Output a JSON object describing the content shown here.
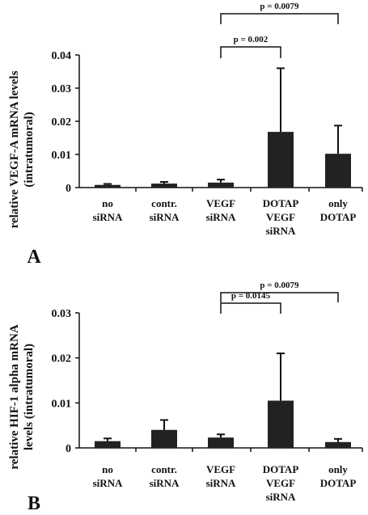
{
  "chart_data": [
    {
      "type": "bar",
      "panel_label": "A",
      "ylabel_lines": [
        "relative VEGF-A mRNA levels",
        "(intratumoral)"
      ],
      "categories": [
        [
          "no",
          "siRNA"
        ],
        [
          "contr.",
          "siRNA"
        ],
        [
          "VEGF",
          "siRNA"
        ],
        [
          "DOTAP",
          "VEGF",
          "siRNA"
        ],
        [
          "only",
          "DOTAP"
        ]
      ],
      "values": [
        0.0008,
        0.0012,
        0.0015,
        0.0168,
        0.0102
      ],
      "errors": [
        0.0003,
        0.0005,
        0.0009,
        0.0192,
        0.0085
      ],
      "ylim": [
        0,
        0.04
      ],
      "yticks": [
        "0",
        "0.01",
        "0.02",
        "0.03",
        "0.04"
      ],
      "bar_color": "#222222",
      "significance": [
        {
          "from": 2,
          "to": 3,
          "label": "p = 0.002"
        },
        {
          "from": 2,
          "to": 4,
          "label": "p = 0.0079"
        }
      ]
    },
    {
      "type": "bar",
      "panel_label": "B",
      "ylabel_lines": [
        "relative HIF-1 alpha mRNA",
        "levels (intratumoral)"
      ],
      "categories": [
        [
          "no",
          "siRNA"
        ],
        [
          "contr.",
          "siRNA"
        ],
        [
          "VEGF",
          "siRNA"
        ],
        [
          "DOTAP",
          "VEGF",
          "siRNA"
        ],
        [
          "only",
          "DOTAP"
        ]
      ],
      "values": [
        0.0015,
        0.004,
        0.0023,
        0.0105,
        0.0013
      ],
      "errors": [
        0.0006,
        0.0022,
        0.0007,
        0.0105,
        0.0007
      ],
      "ylim": [
        0,
        0.03
      ],
      "yticks": [
        "0",
        "0.01",
        "0.02",
        "0.03"
      ],
      "bar_color": "#222222",
      "significance": [
        {
          "from": 2,
          "to": 3,
          "label": "p = 0.0145"
        },
        {
          "from": 2,
          "to": 4,
          "label": "p = 0.0079"
        }
      ]
    }
  ]
}
